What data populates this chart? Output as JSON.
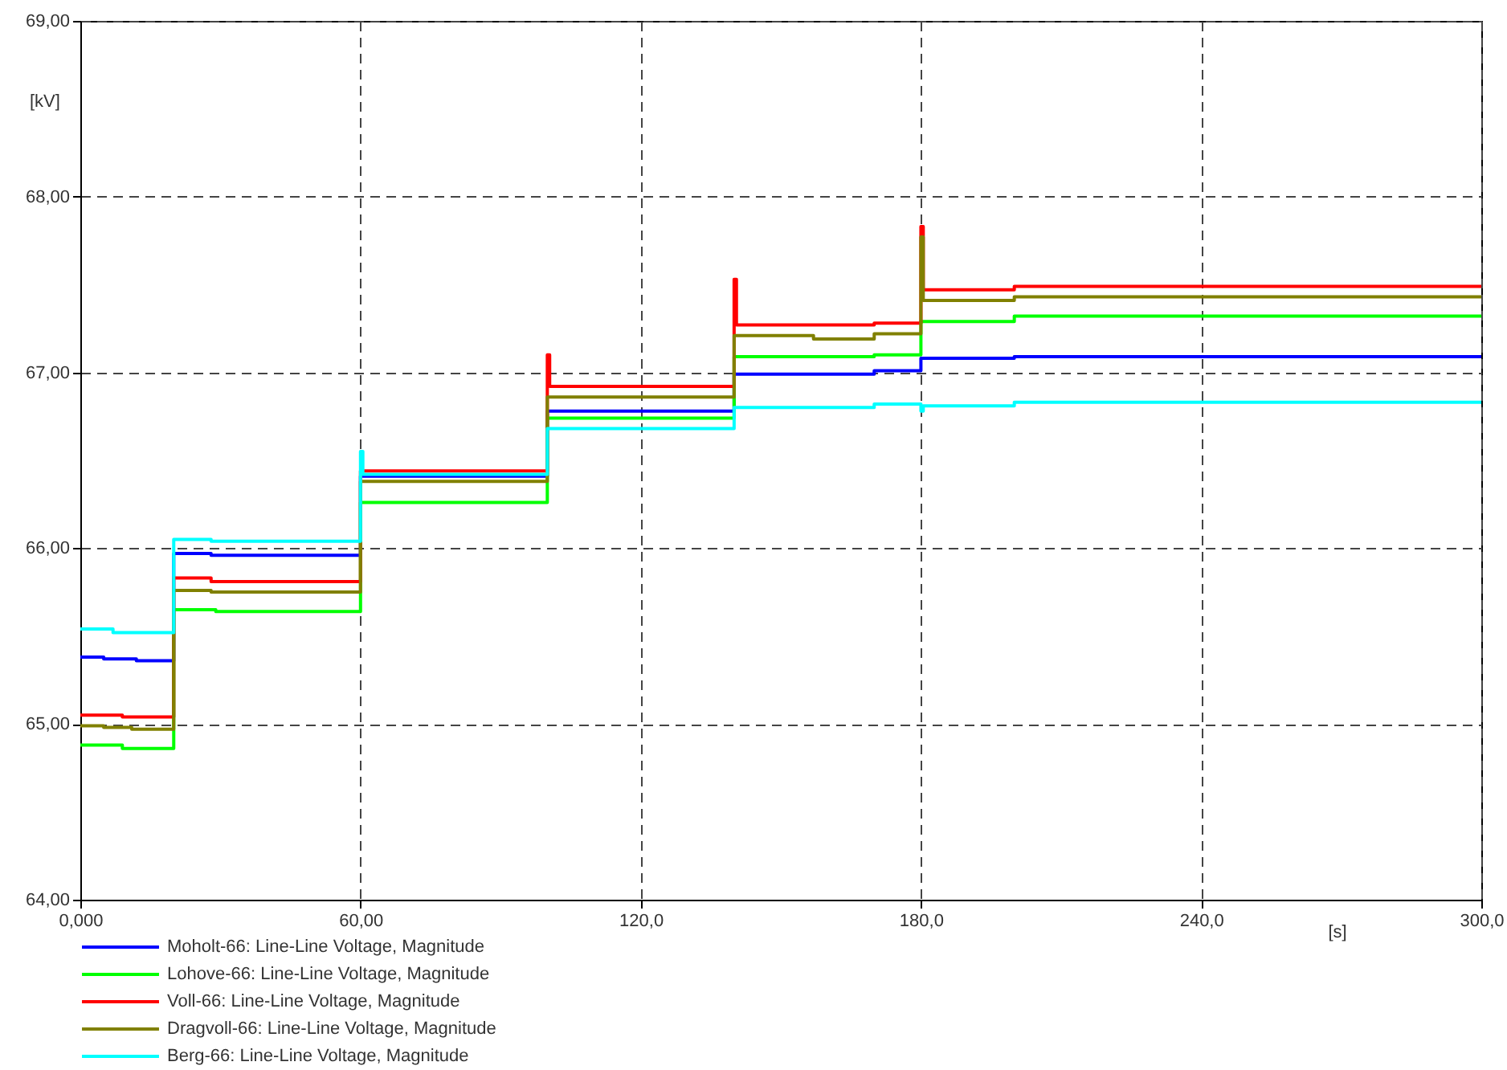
{
  "chart_data": {
    "type": "step",
    "xlabel": "[s]",
    "ylabel": "[kV]",
    "xlim": [
      0,
      300
    ],
    "xticks": [
      {
        "value": 0,
        "label": "0,000"
      },
      {
        "value": 60,
        "label": "60,00"
      },
      {
        "value": 120,
        "label": "120,0"
      },
      {
        "value": 180,
        "label": "180,0"
      },
      {
        "value": 240,
        "label": "240,0"
      },
      {
        "value": 300,
        "label": "300,0"
      }
    ],
    "ylim": [
      64,
      69
    ],
    "yticks": [
      {
        "value": 64,
        "label": "64,00"
      },
      {
        "value": 65,
        "label": "65,00"
      },
      {
        "value": 66,
        "label": "66,00"
      },
      {
        "value": 67,
        "label": "67,00"
      },
      {
        "value": 68,
        "label": "68,00"
      },
      {
        "value": 69,
        "label": "69,00"
      }
    ],
    "grid": true,
    "legend": "bottom",
    "series": [
      {
        "name": "Moholt-66: Line-Line Voltage, Magnitude",
        "color": "#0000ff",
        "x": [
          0,
          5,
          12,
          20,
          28,
          60,
          100,
          140,
          170,
          180,
          200,
          300
        ],
        "values": [
          65.38,
          65.37,
          65.36,
          65.97,
          65.96,
          66.41,
          66.78,
          66.99,
          67.01,
          67.08,
          67.09,
          67.09
        ]
      },
      {
        "name": "Lohove-66: Line-Line Voltage, Magnitude",
        "color": "#00ff00",
        "x": [
          0,
          9,
          20,
          29,
          60,
          100,
          140,
          170,
          180,
          200,
          300
        ],
        "values": [
          64.88,
          64.86,
          65.65,
          65.64,
          66.26,
          66.74,
          67.09,
          67.1,
          67.29,
          67.32,
          67.32
        ]
      },
      {
        "name": "Voll-66: Line-Line Voltage, Magnitude",
        "color": "#ff0000",
        "x": [
          0,
          9,
          20,
          28,
          60,
          100,
          100.5,
          140,
          140.5,
          170,
          180,
          180.5,
          200,
          300
        ],
        "values": [
          65.05,
          65.04,
          65.83,
          65.81,
          66.44,
          67.1,
          66.92,
          67.53,
          67.27,
          67.28,
          67.83,
          67.47,
          67.49,
          67.49
        ]
      },
      {
        "name": "Dragvoll-66: Line-Line Voltage, Magnitude",
        "color": "#808000",
        "x": [
          0,
          5,
          11,
          20,
          28,
          60,
          100,
          140,
          157,
          170,
          180,
          180.5,
          200,
          300
        ],
        "values": [
          64.99,
          64.98,
          64.97,
          65.76,
          65.75,
          66.38,
          66.86,
          67.21,
          67.19,
          67.22,
          67.77,
          67.41,
          67.43,
          67.43
        ]
      },
      {
        "name": "Berg-66: Line-Line Voltage, Magnitude",
        "color": "#00ffff",
        "x": [
          0,
          7,
          20,
          28,
          60,
          60.5,
          100,
          140,
          170,
          180,
          180.5,
          200,
          300
        ],
        "values": [
          65.54,
          65.52,
          66.05,
          66.04,
          66.55,
          66.42,
          66.68,
          66.8,
          66.82,
          66.78,
          66.81,
          66.83,
          66.83
        ]
      }
    ]
  }
}
